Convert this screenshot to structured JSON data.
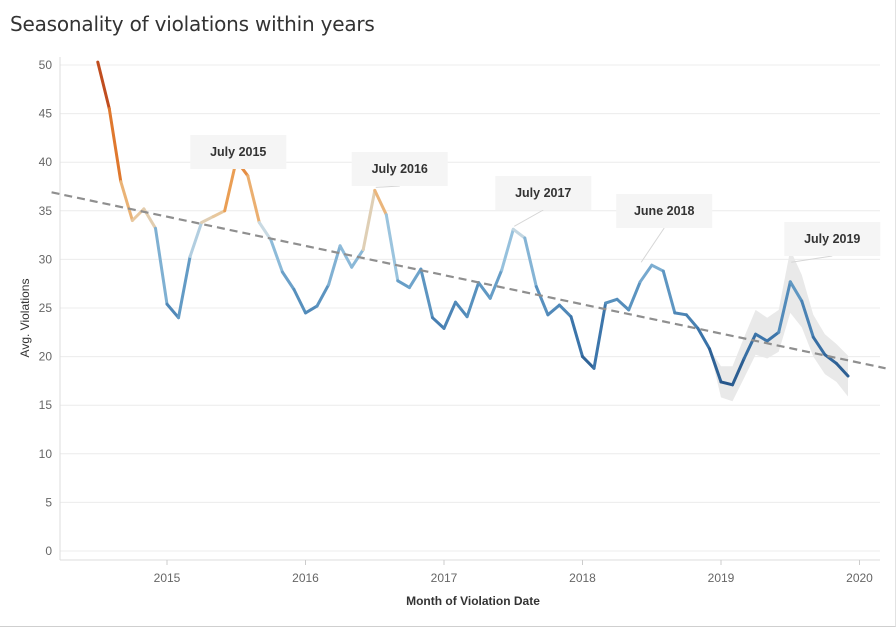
{
  "title": "Seasonality of violations within years",
  "chart_data": {
    "type": "line",
    "title": "Seasonality of violations within years",
    "xlabel": "Month of Violation Date",
    "ylabel": "Avg. Violations",
    "xlim": [
      "2014-03",
      "2020-03"
    ],
    "ylim": [
      0,
      52
    ],
    "x_ticks": [
      "2015",
      "2016",
      "2017",
      "2018",
      "2019",
      "2020"
    ],
    "y_ticks": [
      0,
      5,
      10,
      15,
      20,
      25,
      30,
      35,
      40,
      45,
      50
    ],
    "color_scale": "diverging orange-blue by value",
    "series": [
      {
        "x": [
          "2014-07",
          "2014-08",
          "2014-09",
          "2014-10",
          "2014-11",
          "2014-12",
          "2015-01",
          "2015-02",
          "2015-03",
          "2015-04",
          "2015-05",
          "2015-06",
          "2015-07",
          "2015-08",
          "2015-09",
          "2015-10",
          "2015-11",
          "2015-12",
          "2016-01",
          "2016-02",
          "2016-03",
          "2016-04",
          "2016-05",
          "2016-06",
          "2016-07",
          "2016-08",
          "2016-09",
          "2016-10",
          "2016-11",
          "2016-12",
          "2017-01",
          "2017-02",
          "2017-03",
          "2017-04",
          "2017-05",
          "2017-06",
          "2017-07",
          "2017-08",
          "2017-09",
          "2017-10",
          "2017-11",
          "2017-12",
          "2018-01",
          "2018-02",
          "2018-03",
          "2018-04",
          "2018-05",
          "2018-06",
          "2018-07",
          "2018-08",
          "2018-09",
          "2018-10",
          "2018-11",
          "2018-12",
          "2019-01",
          "2019-02",
          "2019-03",
          "2019-04",
          "2019-05",
          "2019-06",
          "2019-07",
          "2019-08",
          "2019-09",
          "2019-10",
          "2019-11",
          "2019-12"
        ],
        "values": [
          50.3,
          45.5,
          38.0,
          34.0,
          35.2,
          33.2,
          25.4,
          24.0,
          30.3,
          33.8,
          34.4,
          35.0,
          40.2,
          38.6,
          33.8,
          32.0,
          28.7,
          26.9,
          24.5,
          25.2,
          27.4,
          31.4,
          29.2,
          31.0,
          37.1,
          34.6,
          27.8,
          27.1,
          29.0,
          24.0,
          22.9,
          25.6,
          24.1,
          27.6,
          26.0,
          28.9,
          33.1,
          32.2,
          27.2,
          24.3,
          25.3,
          24.1,
          20.0,
          18.8,
          25.5,
          25.9,
          24.8,
          27.7,
          29.4,
          28.8,
          24.5,
          24.3,
          22.9,
          20.8,
          17.4,
          17.1,
          19.8,
          22.3,
          21.6,
          22.5,
          27.7,
          25.7,
          22.0,
          20.2,
          19.3,
          18.0
        ]
      }
    ],
    "forecast_band": {
      "x": [
        "2018-12",
        "2019-01",
        "2019-02",
        "2019-03",
        "2019-04",
        "2019-05",
        "2019-06",
        "2019-07",
        "2019-08",
        "2019-09",
        "2019-10",
        "2019-11",
        "2019-12"
      ],
      "lower": [
        20.8,
        15.8,
        15.4,
        17.8,
        20.2,
        19.8,
        20.5,
        24.5,
        23.0,
        20.0,
        18.2,
        17.4,
        15.9
      ],
      "upper": [
        20.8,
        19.0,
        19.0,
        22.0,
        24.8,
        24.0,
        24.8,
        31.0,
        28.4,
        24.3,
        22.3,
        21.3,
        20.1
      ]
    },
    "trend_line": {
      "from": [
        "2014-03",
        36.9
      ],
      "to": [
        "2020-03",
        18.8
      ],
      "style": "dashed"
    },
    "annotations": [
      {
        "text": "July 2015",
        "x": "2015-07",
        "y": 40.2
      },
      {
        "text": "July 2016",
        "x": "2016-07",
        "y": 37.1
      },
      {
        "text": "July 2017",
        "x": "2017-07",
        "y": 33.1
      },
      {
        "text": "June 2018",
        "x": "2018-06",
        "y": 29.4
      },
      {
        "text": "July 2019",
        "x": "2019-07",
        "y": 29.4
      }
    ],
    "grid": true
  }
}
